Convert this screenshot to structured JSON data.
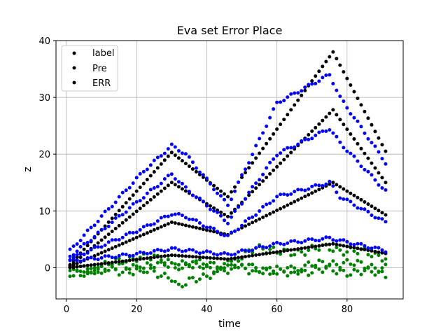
{
  "chart_data": {
    "type": "scatter",
    "title": "Eva set Error Place",
    "xlabel": "time",
    "ylabel": "z",
    "xlim": [
      -3,
      96
    ],
    "ylim": [
      -5.5,
      40
    ],
    "xticks": [
      0,
      20,
      40,
      60,
      80
    ],
    "yticks": [
      0,
      10,
      20,
      30,
      40
    ],
    "grid": true,
    "legend": {
      "placement": "top-left",
      "entries": [
        "label",
        "Pre",
        "ERR"
      ],
      "marker_color": "#000000"
    },
    "colors": {
      "label": "#000000",
      "Pre": "#0000ff",
      "ERR": "#008000"
    },
    "series": [
      {
        "name": "label",
        "color": "#000000",
        "segments": [
          {
            "x": [
              1,
              30,
              46,
              76,
              91
            ],
            "y": [
              0.5,
              20.3,
              12.5,
              38,
              20.5
            ]
          },
          {
            "x": [
              1,
              30,
              46,
              76,
              91
            ],
            "y": [
              0.3,
              15.0,
              9.0,
              27.8,
              15.0
            ]
          },
          {
            "x": [
              1,
              30,
              46,
              76,
              91
            ],
            "y": [
              0.2,
              8.0,
              5.8,
              15.0,
              9.3
            ]
          },
          {
            "x": [
              1,
              30,
              46,
              76,
              91
            ],
            "y": [
              0.0,
              2.2,
              1.5,
              4.2,
              2.5
            ]
          }
        ]
      },
      {
        "name": "Pre",
        "color": "#0000ff",
        "segments": [
          {
            "x": [
              1,
              22,
              30,
              34,
              46,
              60,
              75,
              78,
              91
            ],
            "y": [
              3.0,
              17.0,
              21.5,
              20.0,
              11.0,
              29.0,
              34.0,
              30.0,
              18.5
            ]
          },
          {
            "x": [
              1,
              22,
              30,
              34,
              46,
              60,
              75,
              78,
              91
            ],
            "y": [
              2.0,
              12.5,
              16.5,
              14.0,
              8.0,
              20.0,
              24.5,
              22.0,
              13.5
            ]
          },
          {
            "x": [
              1,
              22,
              30,
              34,
              46,
              60,
              75,
              78,
              91
            ],
            "y": [
              1.5,
              7.0,
              9.5,
              9.0,
              5.5,
              12.5,
              15.0,
              12.5,
              8.0
            ]
          },
          {
            "x": [
              1,
              20,
              30,
              46,
              60,
              75,
              91
            ],
            "y": [
              1.2,
              2.4,
              3.3,
              2.3,
              4.2,
              5.2,
              3.0
            ]
          }
        ]
      },
      {
        "name": "ERR",
        "color": "#008000",
        "segments": [
          {
            "x": [
              1,
              20,
              30,
              46,
              60,
              75,
              91
            ],
            "y": [
              -0.5,
              0.3,
              0.5,
              0.5,
              -0.5,
              -0.5,
              -1.0
            ]
          },
          {
            "x": [
              1,
              20,
              30,
              46,
              54,
              60,
              75,
              91
            ],
            "y": [
              -1.5,
              2.0,
              1.0,
              -0.5,
              4.0,
              2.5,
              3.5,
              2.0
            ]
          },
          {
            "x": [
              1,
              20,
              30,
              32,
              46,
              60,
              75,
              91
            ],
            "y": [
              -0.5,
              -0.5,
              -1.5,
              -3.5,
              0.5,
              -1.0,
              1.0,
              0.0
            ]
          }
        ]
      }
    ]
  }
}
